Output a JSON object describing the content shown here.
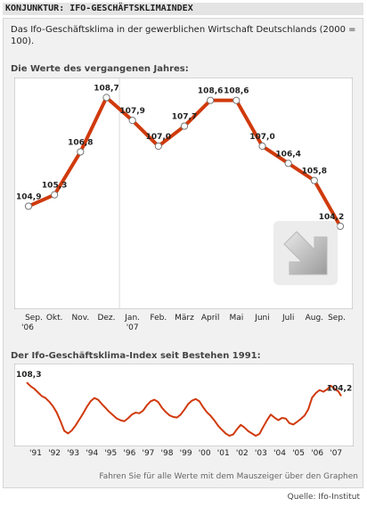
{
  "header": {
    "title": "KONJUNKTUR: IFO-GESCHÄFTSKLIMAINDEX"
  },
  "description": "Das Ifo-Geschäftsklima in der gewerblichen Wirtschaft Deutschlands (2000  = 100).",
  "hint": "Fahren Sie für alle Werte mit dem Mauszeiger über den Graphen",
  "source": "Quelle: Ifo-Institut",
  "colors": {
    "line": "#d03a0c",
    "frame": "#f1f1f1",
    "plot_bg": "#ffffff"
  },
  "chart_data": [
    {
      "type": "line",
      "title": "Die Werte des vergangenen Jahres:",
      "categories": [
        "Sep. '06",
        "Okt.",
        "Nov.",
        "Dez.",
        "Jan. '07",
        "Feb.",
        "März",
        "April",
        "Mai",
        "Juni",
        "Juli",
        "Aug.",
        "Sep."
      ],
      "tick_labels": [
        [
          "Sep.",
          "'06"
        ],
        [
          "Okt."
        ],
        [
          "Nov."
        ],
        [
          "Dez."
        ],
        [
          "Jan.",
          "'07"
        ],
        [
          "Feb."
        ],
        [
          "März"
        ],
        [
          "April"
        ],
        [
          "Mai"
        ],
        [
          "Juni"
        ],
        [
          "Juli"
        ],
        [
          "Aug."
        ],
        [
          "Sep."
        ]
      ],
      "values": [
        104.9,
        105.3,
        106.8,
        108.7,
        107.9,
        107.0,
        107.7,
        108.6,
        108.6,
        107.0,
        106.4,
        105.8,
        104.2
      ],
      "value_labels": [
        "104,9",
        "105,3",
        "106,8",
        "108,7",
        "107,9",
        "107,0",
        "107,7",
        "108,6",
        "108,6",
        "107,0",
        "106,4",
        "105,8",
        "104,2"
      ],
      "ylim": [
        101.3,
        109.4
      ],
      "grid": false,
      "year_divider_after_index": 4
    },
    {
      "type": "line",
      "title": "Der Ifo-Geschäftsklima-Index seit Bestehen 1991:",
      "x_tick_labels": [
        "'91",
        "'92",
        "'93",
        "'94",
        "'95",
        "'96",
        "'97",
        "'98",
        "'99",
        "'00",
        "'01",
        "'02",
        "'03",
        "'04",
        "'05",
        "'06",
        "'07"
      ],
      "series": [
        {
          "x": [
            1991.0,
            1991.2,
            1991.4,
            1991.6,
            1991.8,
            1992.0,
            1992.2,
            1992.4,
            1992.6,
            1992.8,
            1993.0,
            1993.2,
            1993.4,
            1993.6,
            1993.8,
            1994.0,
            1994.2,
            1994.4,
            1994.6,
            1994.8,
            1995.0,
            1995.2,
            1995.4,
            1995.6,
            1995.8,
            1996.0,
            1996.2,
            1996.4,
            1996.6,
            1996.8,
            1997.0,
            1997.2,
            1997.4,
            1997.6,
            1997.8,
            1998.0,
            1998.2,
            1998.4,
            1998.6,
            1998.8,
            1999.0,
            1999.2,
            1999.4,
            1999.6,
            1999.8,
            2000.0,
            2000.2,
            2000.4,
            2000.6,
            2000.8,
            2001.0,
            2001.2,
            2001.4,
            2001.6,
            2001.8,
            2002.0,
            2002.2,
            2002.4,
            2002.6,
            2002.8,
            2003.0,
            2003.2,
            2003.4,
            2003.6,
            2003.8,
            2004.0,
            2004.2,
            2004.4,
            2004.6,
            2004.8,
            2005.0,
            2005.2,
            2005.4,
            2005.6,
            2005.8,
            2006.0,
            2006.2,
            2006.4,
            2006.6,
            2006.8,
            2007.0,
            2007.2,
            2007.4,
            2007.6,
            2007.75
          ],
          "values": [
            108.3,
            107.2,
            106.4,
            105.3,
            104.2,
            103.6,
            102.5,
            101.1,
            99.2,
            96.6,
            93.7,
            92.9,
            93.8,
            95.3,
            97.1,
            98.9,
            100.9,
            102.6,
            103.6,
            103.1,
            101.8,
            100.6,
            99.4,
            98.4,
            97.4,
            96.9,
            96.6,
            97.5,
            98.6,
            99.2,
            99.0,
            99.8,
            101.4,
            102.6,
            103.1,
            102.4,
            100.7,
            99.4,
            98.4,
            97.9,
            97.7,
            98.6,
            100.1,
            101.8,
            102.8,
            103.3,
            102.6,
            100.8,
            99.3,
            98.2,
            96.8,
            95.2,
            94.0,
            92.9,
            92.2,
            92.6,
            94.2,
            95.5,
            94.7,
            93.6,
            92.9,
            92.2,
            92.8,
            94.9,
            96.9,
            98.6,
            97.7,
            96.9,
            97.6,
            97.4,
            96.0,
            95.6,
            96.4,
            97.3,
            98.3,
            100.2,
            103.7,
            105.1,
            106.0,
            105.5,
            106.2,
            107.3,
            106.4,
            105.6,
            104.2
          ]
        }
      ],
      "annotations": [
        {
          "label": "108,3",
          "x": 1991.0,
          "y": 108.3
        },
        {
          "label": "104,2",
          "x": 2007.75,
          "y": 104.2
        }
      ],
      "xlim": [
        1991.0,
        2007.75
      ],
      "ylim": [
        89.0,
        114.0
      ],
      "grid": false
    }
  ]
}
